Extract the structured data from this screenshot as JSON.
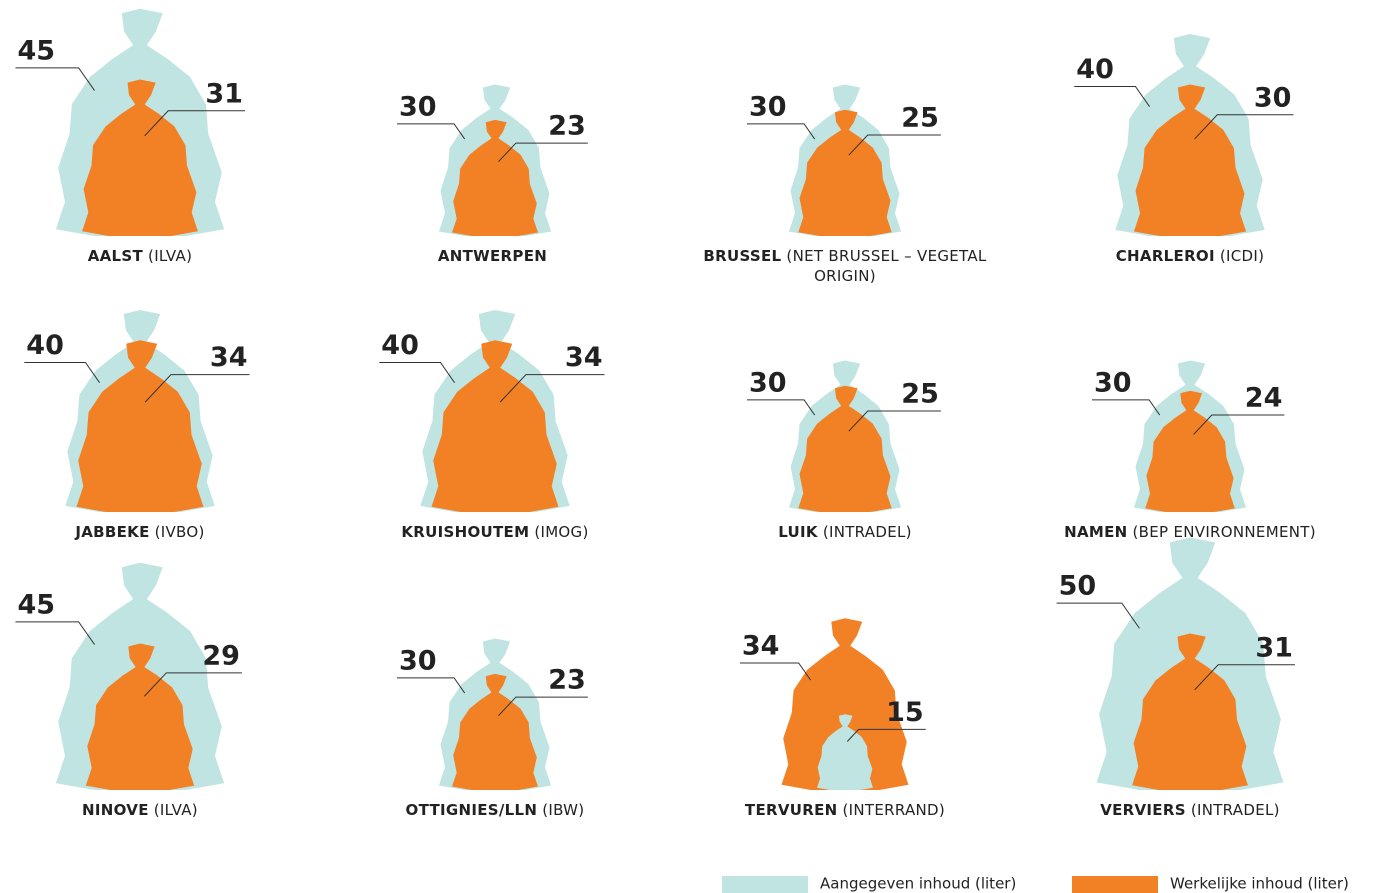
{
  "chart_data": {
    "type": "bag",
    "categories": [
      "AALST",
      "ANTWERPEN",
      "BRUSSEL",
      "CHARLEROI",
      "JABBEKE",
      "KRUISHOUTEM",
      "LUIK",
      "NAMEN",
      "NINOVE",
      "OTTIGNIES/LLN",
      "TERVUREN",
      "VERVIERS"
    ],
    "category_notes": [
      "(ILVA)",
      null,
      "(NET BRUSSEL – VEGETAL ORIGIN)",
      "(ICDI)",
      "(IVBO)",
      "(IMOG)",
      "(INTRADEL)",
      "(BEP ENVIRONNEMENT)",
      "(ILVA)",
      "(IBW)",
      "(INTERRAND)",
      "(INTRADEL)"
    ],
    "series": [
      {
        "name": "Aangegeven inhoud (liter)",
        "color": "#c0e4e1",
        "values": [
          45,
          30,
          30,
          40,
          40,
          40,
          30,
          30,
          45,
          30,
          15,
          50
        ]
      },
      {
        "name": "Werkelijke inhoud (liter)",
        "color": "#f28024",
        "values": [
          31,
          23,
          25,
          30,
          34,
          34,
          25,
          24,
          29,
          23,
          34,
          31
        ]
      }
    ]
  }
}
